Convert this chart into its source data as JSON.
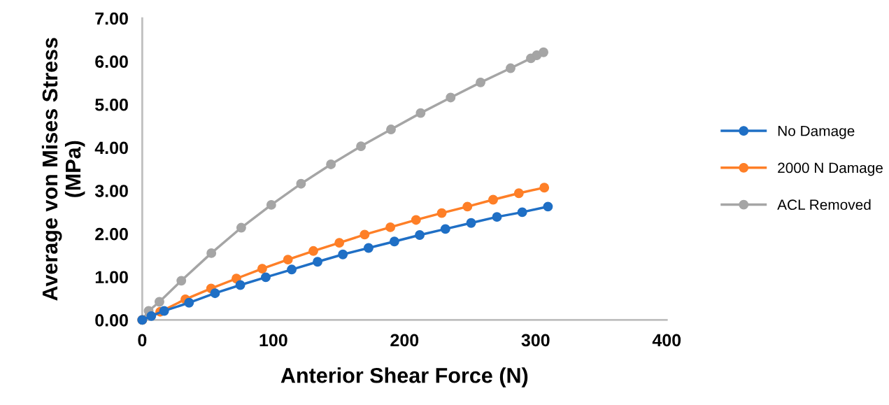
{
  "chart_data": {
    "type": "line",
    "xlabel": "Anterior Shear Force (N)",
    "ylabel": "Average von Mises Stress\n(MPa)",
    "xlim": [
      0,
      400
    ],
    "xticks": [
      0,
      100,
      200,
      300,
      400
    ],
    "ylim": [
      0,
      7
    ],
    "yticks": [
      {
        "value": 0,
        "label": "0.00"
      },
      {
        "value": 1,
        "label": "1.00"
      },
      {
        "value": 2,
        "label": "2.00"
      },
      {
        "value": 3,
        "label": "3.00"
      },
      {
        "value": 4,
        "label": "4.00"
      },
      {
        "value": 5,
        "label": "5.00"
      },
      {
        "value": 6,
        "label": "6.00"
      },
      {
        "value": 7,
        "label": "7.00"
      }
    ],
    "grid": false,
    "legend": "right",
    "marker": "circle",
    "line_style": "solid",
    "series": [
      {
        "name": "No Damage",
        "color": "#1f6fc5",
        "x": [
          0,
          6.9,
          16.7,
          35.7,
          55.5,
          74.8,
          94.2,
          114,
          133.7,
          153,
          172.6,
          192.3,
          211.6,
          231.2,
          250.8,
          270.5,
          289.8,
          309.4
        ],
        "values": [
          0,
          0.09,
          0.21,
          0.4,
          0.62,
          0.81,
          0.99,
          1.17,
          1.35,
          1.52,
          1.67,
          1.82,
          1.97,
          2.11,
          2.25,
          2.39,
          2.5,
          2.63
        ]
      },
      {
        "name": "2000 N Damage",
        "color": "#fe7f27",
        "x": [
          0,
          13.7,
          32.9,
          52.5,
          71.8,
          91.5,
          111.1,
          130.5,
          150.3,
          169.6,
          189.2,
          208.8,
          228.4,
          248,
          267.6,
          287.2,
          306.6
        ],
        "values": [
          0,
          0.19,
          0.48,
          0.73,
          0.96,
          1.19,
          1.4,
          1.6,
          1.79,
          1.98,
          2.15,
          2.32,
          2.48,
          2.63,
          2.79,
          2.94,
          3.07
        ]
      },
      {
        "name": "ACL Removed",
        "color": "#a5a5a5",
        "x": [
          0,
          4.9,
          13.1,
          29.8,
          52.7,
          75.5,
          98.4,
          121.1,
          143.9,
          166.8,
          189.7,
          212.3,
          235.2,
          258,
          280.9,
          296.4,
          300.8,
          306
        ],
        "values": [
          0,
          0.21,
          0.42,
          0.91,
          1.55,
          2.14,
          2.67,
          3.16,
          3.61,
          4.03,
          4.42,
          4.8,
          5.16,
          5.51,
          5.84,
          6.07,
          6.14,
          6.21
        ]
      }
    ]
  }
}
